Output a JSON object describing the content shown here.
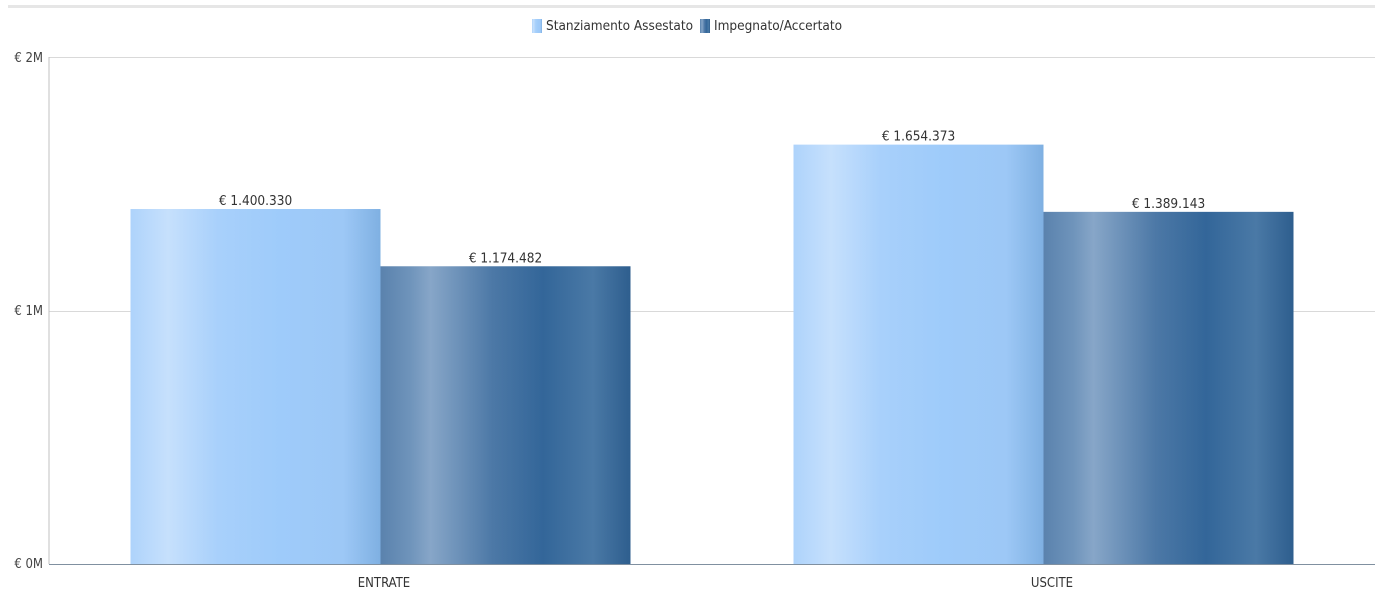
{
  "chart_data": {
    "type": "bar",
    "categories": [
      "ENTRATE",
      "USCITE"
    ],
    "series": [
      {
        "name": "Stanziamento Assestato",
        "values": [
          1400330,
          1654373
        ],
        "labels": [
          "€ 1.400.330",
          "€ 1.654.373"
        ],
        "color": "#9ecbfa"
      },
      {
        "name": "Impegnato/Accertato",
        "values": [
          1174482,
          1389143
        ],
        "labels": [
          "€ 1.174.482",
          "€ 1.389.143"
        ],
        "color": "#336699"
      }
    ],
    "ylim": [
      0,
      2000000
    ],
    "yticks": [
      {
        "value": 0,
        "label": "€ 0M"
      },
      {
        "value": 1000000,
        "label": "€ 1M"
      },
      {
        "value": 2000000,
        "label": "€ 2M"
      }
    ],
    "grid": true,
    "legend_position": "top-center",
    "title": "",
    "xlabel": "",
    "ylabel": ""
  }
}
